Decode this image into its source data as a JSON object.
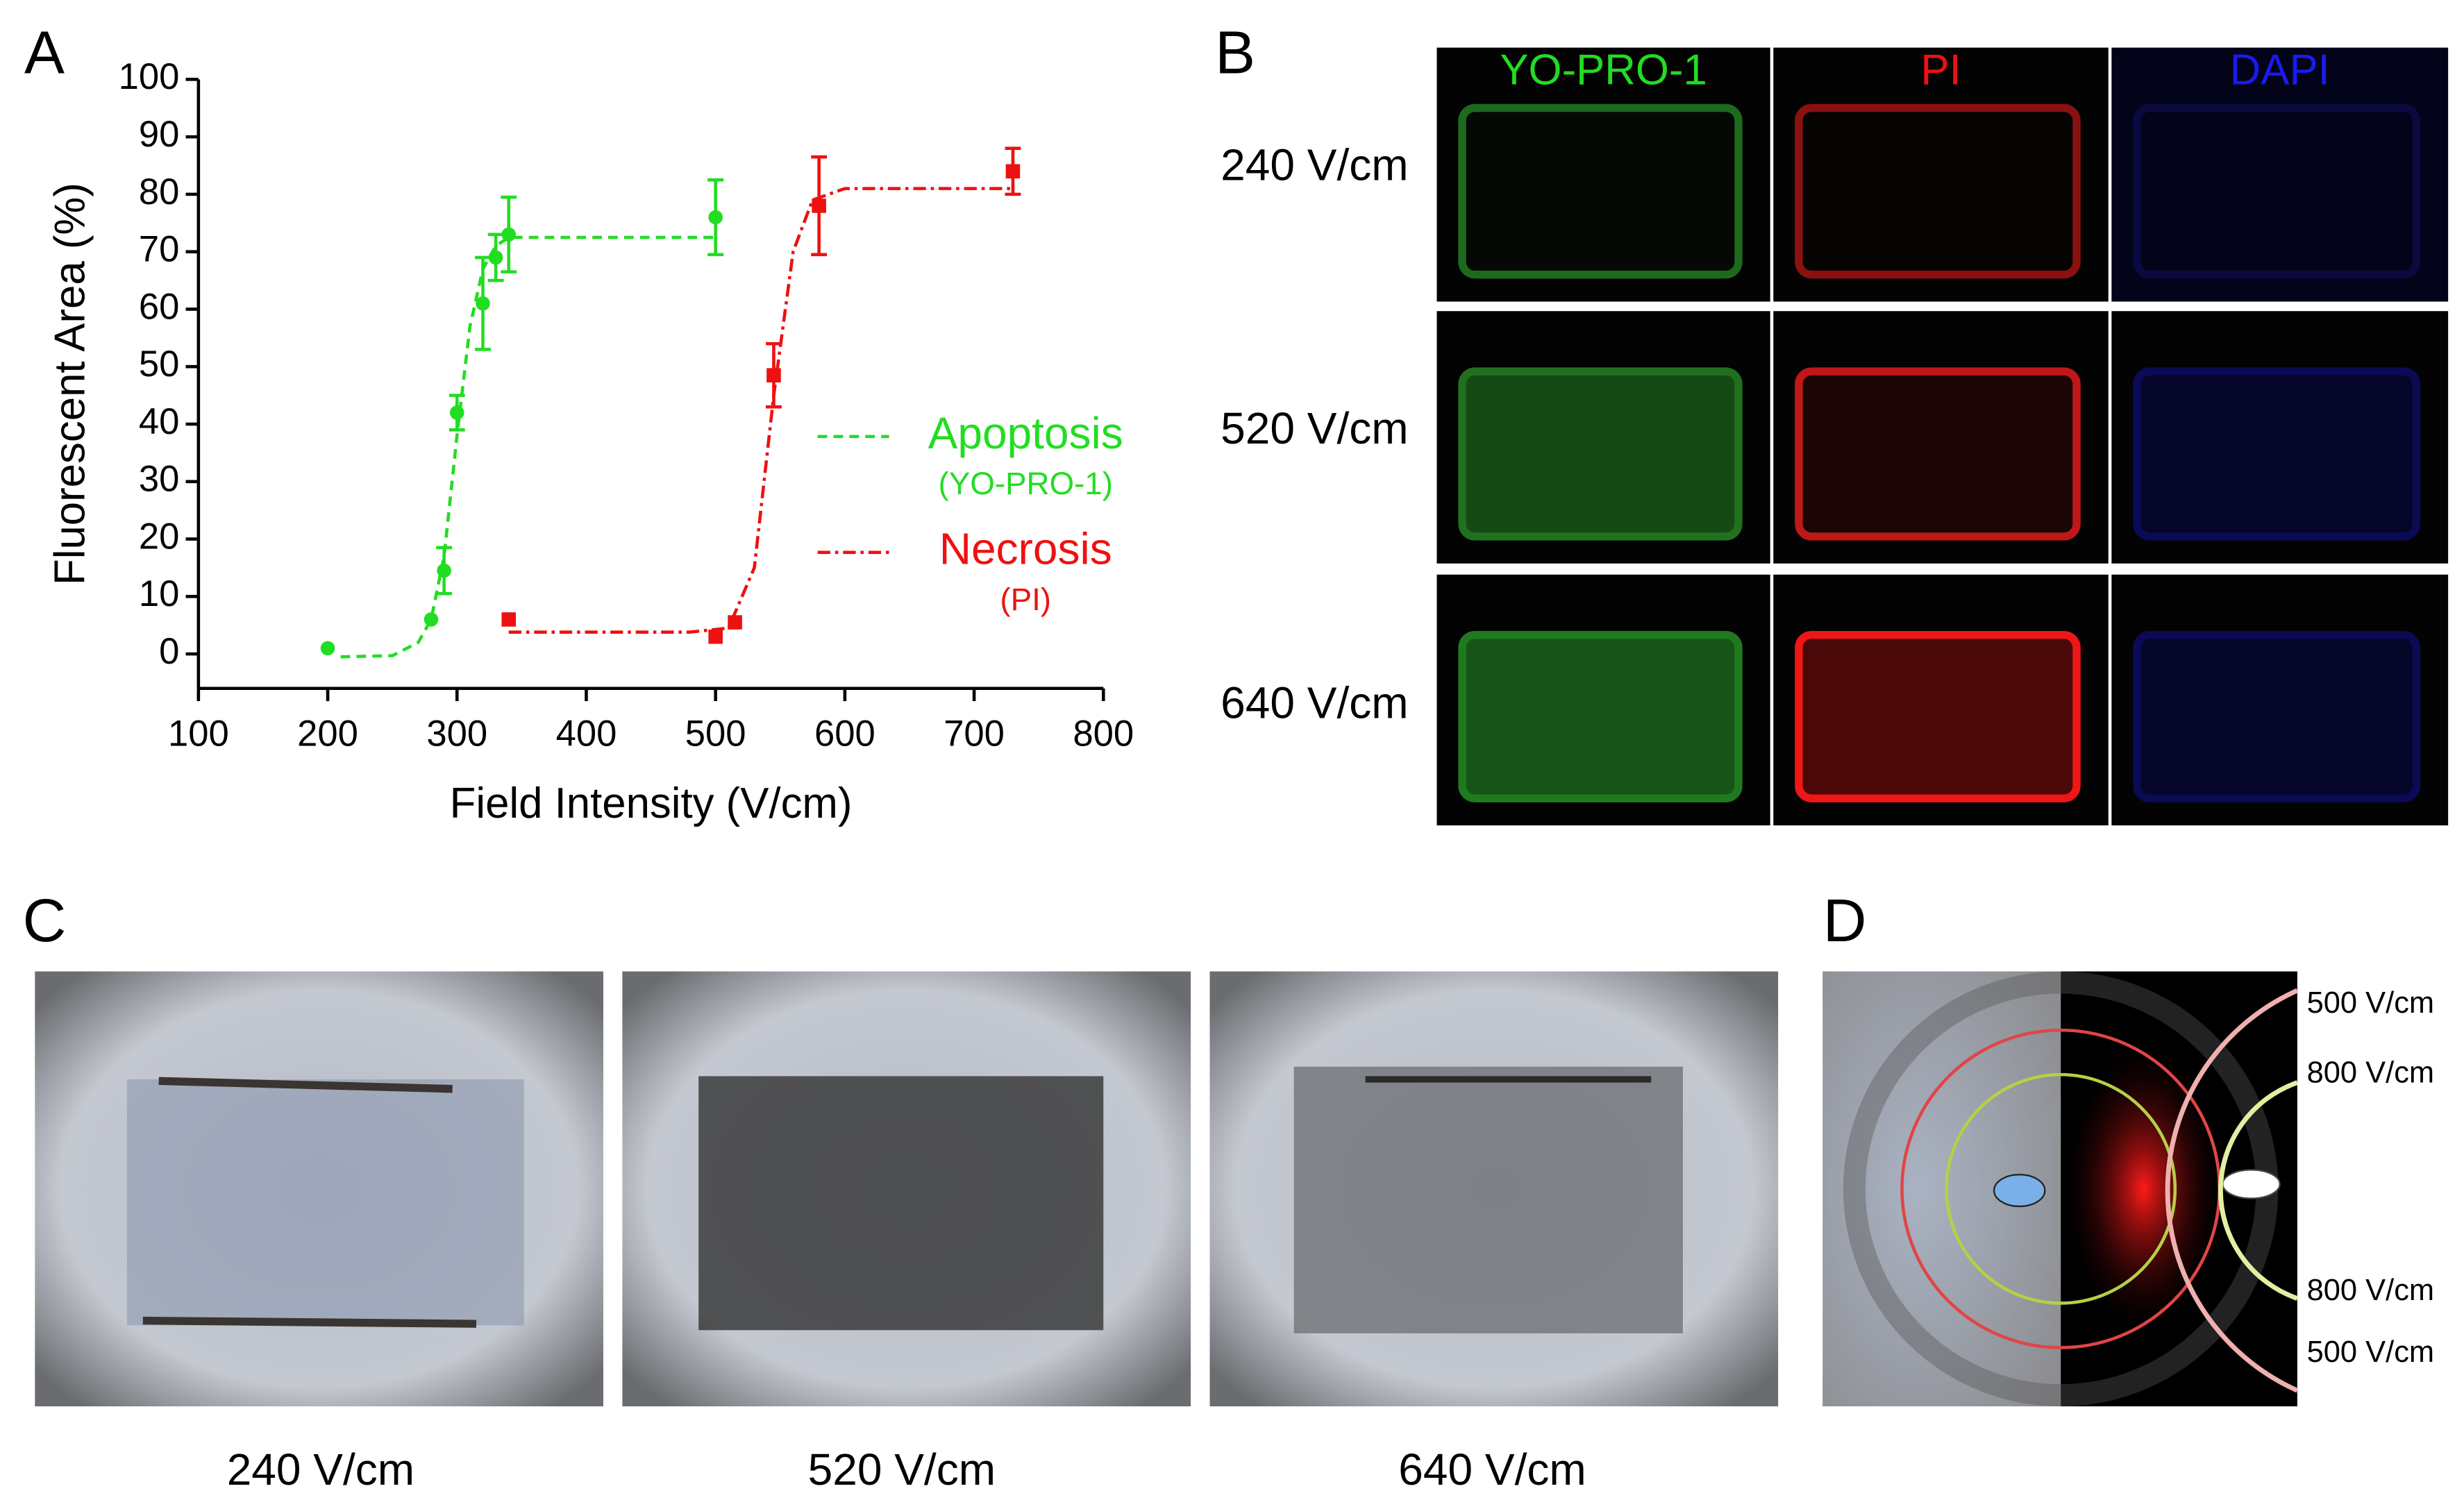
{
  "panel_letters": [
    "A",
    "B",
    "C",
    "D"
  ],
  "chart_data": {
    "type": "scatter",
    "xlabel": "Field Intensity (V/cm)",
    "ylabel": "Fluorescent Area (%)",
    "xlim": [
      100,
      800
    ],
    "xticks": [
      100,
      200,
      300,
      400,
      500,
      600,
      700,
      800
    ],
    "ylim": [
      -6,
      100
    ],
    "yticks": [
      0,
      10,
      20,
      30,
      40,
      50,
      60,
      70,
      80,
      90,
      100
    ],
    "series": [
      {
        "name": "Apoptosis",
        "sublabel": "(YO-PRO-1)",
        "color": "#22dd22",
        "dash": "dashed",
        "x": [
          200,
          280,
          290,
          300,
          320,
          330,
          340,
          500
        ],
        "values": [
          1,
          6,
          14.5,
          42,
          61,
          69,
          73,
          76
        ],
        "errors": [
          0,
          0,
          4,
          3,
          8,
          4,
          6.5,
          6.5
        ],
        "fit_x": [
          210,
          250,
          270,
          280,
          290,
          300,
          310,
          320,
          330,
          340,
          500
        ],
        "fit_values": [
          -0.5,
          -0.3,
          2,
          6,
          17,
          38,
          57,
          67,
          71,
          72.5,
          72.5
        ]
      },
      {
        "name": "Necrosis",
        "sublabel": "(PI)",
        "color": "#ee1111",
        "dash": "dashdot",
        "x": [
          340,
          500,
          515,
          545,
          580,
          730
        ],
        "values": [
          6,
          3,
          5.5,
          48.5,
          78,
          84
        ],
        "errors": [
          0,
          0,
          0,
          5.5,
          8.5,
          4
        ],
        "fit_x": [
          340,
          480,
          510,
          530,
          545,
          560,
          575,
          600,
          730
        ],
        "fit_values": [
          3.8,
          3.8,
          4.5,
          15,
          45,
          70,
          79,
          81,
          81
        ]
      }
    ]
  },
  "panel_b": {
    "columns": [
      "YO-PRO-1",
      "PI",
      "DAPI"
    ],
    "rows": [
      "240 V/cm",
      "520 V/cm",
      "640 V/cm"
    ]
  },
  "panel_c": {
    "labels": [
      "240 V/cm",
      "520 V/cm",
      "640 V/cm"
    ]
  },
  "panel_d": {
    "labels": [
      "500 V/cm",
      "800 V/cm",
      "800 V/cm",
      "500 V/cm"
    ]
  }
}
